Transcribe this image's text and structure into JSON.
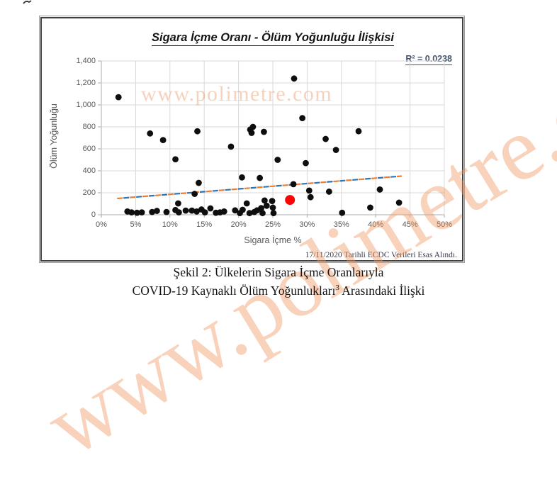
{
  "figure": {
    "watermark": "www.polimetre.com",
    "source_note": "17/11/2020 Tarihli ECDC Verileri Esas Alındı."
  },
  "caption": {
    "line1": "Şekil 2: Ülkelerin Sigara İçme Oranlarıyla",
    "line2_main": "COVID-19 Kaynaklı Ölüm Yoğunlukları",
    "line2_sup": "3",
    "line2_tail": " Arasındaki İlişki"
  },
  "chart_data": {
    "type": "scatter",
    "title": "Sigara İçme Oranı - Ölüm Yoğunluğu İlişkisi",
    "xlabel": "Sigara İçme %",
    "ylabel": "Ölüm Yoğunluğu",
    "xlim": [
      0,
      50
    ],
    "ylim": [
      0,
      1400
    ],
    "grid": true,
    "r_squared": 0.0238,
    "r2_label": "R² = 0.0238",
    "x_ticks": {
      "values": [
        0,
        5,
        10,
        15,
        20,
        25,
        30,
        35,
        40,
        45,
        50
      ],
      "labels": [
        "0%",
        "5%",
        "10%",
        "15%",
        "20%",
        "25%",
        "30%",
        "35%",
        "40%",
        "45%",
        "50%"
      ]
    },
    "y_ticks": {
      "values": [
        0,
        200,
        400,
        600,
        800,
        1000,
        1200,
        1400
      ],
      "labels": [
        "0",
        "200",
        "400",
        "600",
        "800",
        "1,000",
        "1,200",
        "1,400"
      ]
    },
    "series": [
      {
        "name": "countries",
        "marker": "circle",
        "color": "#0e0e0e",
        "radius": 4.4,
        "points": [
          [
            2.5,
            1070
          ],
          [
            28.1,
            1240
          ],
          [
            29.3,
            880
          ],
          [
            7.1,
            740
          ],
          [
            9.0,
            680
          ],
          [
            14.0,
            760
          ],
          [
            10.8,
            505
          ],
          [
            18.9,
            620
          ],
          [
            21.7,
            775
          ],
          [
            22.1,
            800
          ],
          [
            21.9,
            745
          ],
          [
            23.7,
            755
          ],
          [
            25.7,
            500
          ],
          [
            29.8,
            470
          ],
          [
            32.7,
            690
          ],
          [
            34.2,
            590
          ],
          [
            37.5,
            760
          ],
          [
            14.2,
            290
          ],
          [
            13.6,
            190
          ],
          [
            20.5,
            340
          ],
          [
            23.1,
            335
          ],
          [
            28.0,
            278
          ],
          [
            30.3,
            220
          ],
          [
            30.5,
            160
          ],
          [
            33.2,
            210
          ],
          [
            40.6,
            230
          ],
          [
            43.4,
            110
          ],
          [
            39.2,
            65
          ],
          [
            11.2,
            103
          ],
          [
            21.2,
            103
          ],
          [
            23.8,
            130
          ],
          [
            24.9,
            125
          ],
          [
            24.1,
            82
          ],
          [
            25.0,
            65
          ],
          [
            23.3,
            60
          ],
          [
            3.8,
            30
          ],
          [
            4.4,
            22
          ],
          [
            5.2,
            18
          ],
          [
            5.9,
            22
          ],
          [
            7.4,
            25
          ],
          [
            8.1,
            35
          ],
          [
            9.5,
            25
          ],
          [
            10.8,
            43
          ],
          [
            11.3,
            22
          ],
          [
            12.3,
            38
          ],
          [
            13.2,
            38
          ],
          [
            13.9,
            30
          ],
          [
            14.6,
            48
          ],
          [
            15.1,
            22
          ],
          [
            15.9,
            58
          ],
          [
            16.7,
            18
          ],
          [
            17.3,
            22
          ],
          [
            17.9,
            30
          ],
          [
            19.5,
            40
          ],
          [
            20.2,
            15
          ],
          [
            20.6,
            45
          ],
          [
            21.6,
            15
          ],
          [
            22.3,
            25
          ],
          [
            22.7,
            40
          ],
          [
            23.5,
            15
          ],
          [
            25.1,
            15
          ],
          [
            35.1,
            18
          ]
        ]
      },
      {
        "name": "highlighted-point",
        "marker": "circle",
        "color": "#fe0404",
        "radius": 7,
        "points": [
          [
            27.5,
            135
          ]
        ]
      }
    ],
    "trendline": {
      "x1": 2.3,
      "y1": 148,
      "x2": 43.8,
      "y2": 352,
      "style": "dash-alternating",
      "colors": [
        "#ED7D31",
        "#2E74B5"
      ]
    },
    "colors": {
      "gridline": "#d9d9d9",
      "axisline": "#ababab",
      "tick_text": "#595959",
      "title_text": "#151515",
      "r2_text": "#44546a"
    }
  }
}
